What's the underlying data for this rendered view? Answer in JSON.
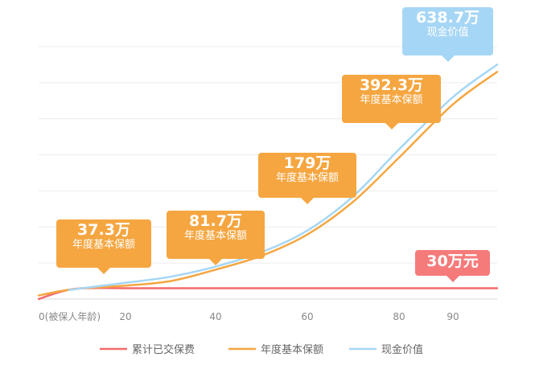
{
  "chart_data": {
    "type": "line",
    "x_ticks": [
      "0(被保人年龄)",
      "20",
      "40",
      "60",
      "80",
      "90"
    ],
    "xlim": [
      0,
      100
    ],
    "ylim": [
      0,
      700
    ],
    "grid": true,
    "legend_position": "bottom",
    "series": [
      {
        "name": "累计已交保费",
        "color": "#f56b6b",
        "x": [
          0,
          5,
          10,
          20,
          40,
          60,
          80,
          90,
          100
        ],
        "values": [
          0,
          20,
          30,
          30,
          30,
          30,
          30,
          30,
          30
        ]
      },
      {
        "name": "年度基本保额",
        "color": "#f5a641",
        "x": [
          0,
          5,
          10,
          20,
          30,
          40,
          50,
          60,
          70,
          80,
          90,
          100
        ],
        "values": [
          10,
          22,
          30,
          37.3,
          50,
          81.7,
          120,
          179,
          270,
          392.3,
          540,
          630
        ]
      },
      {
        "name": "现金价值",
        "color": "#a6d6f5",
        "x": [
          7,
          10,
          20,
          30,
          40,
          50,
          60,
          70,
          80,
          90,
          100
        ],
        "values": [
          25,
          30,
          45,
          62,
          90,
          130,
          190,
          285,
          415,
          560,
          650
        ]
      }
    ],
    "annotations": [
      {
        "value": "37.3万",
        "label": "年度基本保额"
      },
      {
        "value": "81.7万",
        "label": "年度基本保额"
      },
      {
        "value": "179万",
        "label": "年度基本保额"
      },
      {
        "value": "392.3万",
        "label": "年度基本保额"
      },
      {
        "value": "638.7万",
        "label": "现金价值"
      },
      {
        "value": "30万元"
      }
    ]
  }
}
